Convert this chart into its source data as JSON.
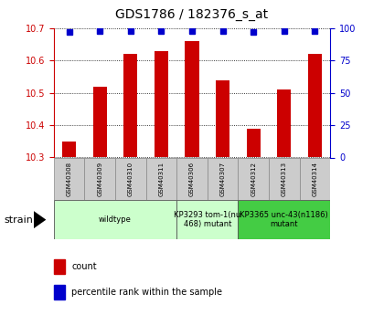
{
  "title": "GDS1786 / 182376_s_at",
  "samples": [
    "GSM40308",
    "GSM40309",
    "GSM40310",
    "GSM40311",
    "GSM40306",
    "GSM40307",
    "GSM40312",
    "GSM40313",
    "GSM40314"
  ],
  "count_values": [
    10.35,
    10.52,
    10.62,
    10.63,
    10.66,
    10.54,
    10.39,
    10.51,
    10.62
  ],
  "percentile_values": [
    97,
    98,
    98,
    98,
    98,
    98,
    97,
    98,
    98
  ],
  "ylim_left": [
    10.3,
    10.7
  ],
  "ylim_right": [
    0,
    100
  ],
  "yticks_left": [
    10.3,
    10.4,
    10.5,
    10.6,
    10.7
  ],
  "yticks_right": [
    0,
    25,
    50,
    75,
    100
  ],
  "bar_color": "#cc0000",
  "dot_color": "#0000cc",
  "groups": [
    {
      "label": "wildtype",
      "start": 0,
      "end": 4,
      "color": "#ccffcc"
    },
    {
      "label": "KP3293 tom-1(nu\n468) mutant",
      "start": 4,
      "end": 6,
      "color": "#ccffcc"
    },
    {
      "label": "KP3365 unc-43(n1186)\nmutant",
      "start": 6,
      "end": 9,
      "color": "#44cc44"
    }
  ],
  "legend_items": [
    {
      "label": "count",
      "color": "#cc0000"
    },
    {
      "label": "percentile rank within the sample",
      "color": "#0000cc"
    }
  ],
  "strain_label": "strain",
  "background_color": "#ffffff",
  "tick_color_left": "#cc0000",
  "tick_color_right": "#0000cc",
  "label_box_color": "#cccccc",
  "title_fontsize": 10,
  "tick_fontsize": 7,
  "sample_fontsize": 5,
  "group_fontsize": 6,
  "legend_fontsize": 7,
  "strain_fontsize": 8
}
